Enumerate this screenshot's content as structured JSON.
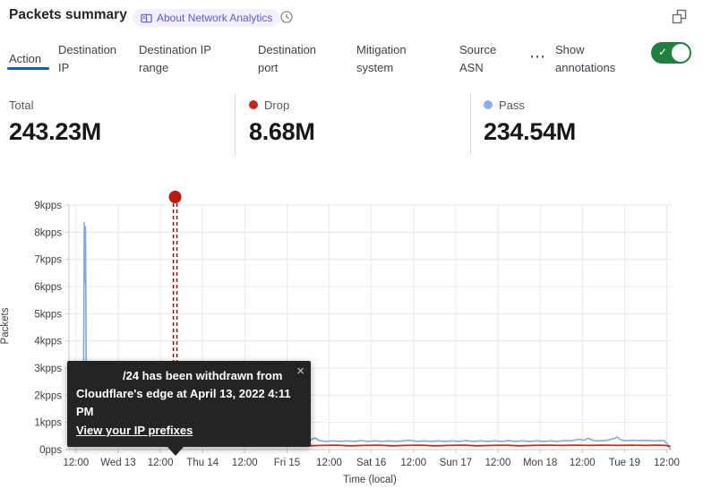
{
  "colors": {
    "accent_blue": "#0b62b8",
    "toggle_green": "#1f8040",
    "badge_bg": "#f1f0fb",
    "badge_text": "#5a5bd7",
    "drop": "#c0281f",
    "pass": "#8ab0e8"
  },
  "glyphs": {
    "close": "×",
    "more": "⋯",
    "check": "✓"
  },
  "header": {
    "title": "Packets summary",
    "about_badge": "About Network Analytics"
  },
  "tabs": {
    "items": [
      {
        "label": "Action",
        "active": true
      },
      {
        "label": "Destination IP",
        "active": false
      },
      {
        "label": "Destination IP range",
        "active": false
      },
      {
        "label": "Destination port",
        "active": false
      },
      {
        "label": "Mitigation system",
        "active": false
      },
      {
        "label": "Source ASN",
        "active": false
      }
    ],
    "annotations_label": "Show annotations",
    "annotations_toggle_on": true
  },
  "stats": [
    {
      "label": "Total",
      "value": "243.23M"
    },
    {
      "label": "Drop",
      "value": "8.68M"
    },
    {
      "label": "Pass",
      "value": "234.54M"
    }
  ],
  "tooltip": {
    "line1": "/24 has been withdrawn from",
    "line2": "Cloudflare's edge at April 13, 2022 4:11 PM",
    "link_label": "View your IP prefixes"
  },
  "chart_data": {
    "type": "line",
    "title": "Packets summary",
    "xlabel": "Time (local)",
    "ylabel": "Packets",
    "x_unit": "hours_since_start",
    "x_range_hours": [
      0,
      171.4
    ],
    "ylim_kpps": [
      0,
      9
    ],
    "grid": true,
    "grid_color": "#e9e9e9",
    "axis_color": "#c9c9c9",
    "y_ticks": [
      "0pps",
      "1kpps",
      "2kpps",
      "3kpps",
      "4kpps",
      "5kpps",
      "6kpps",
      "7kpps",
      "8kpps",
      "9kpps"
    ],
    "x_ticks": [
      {
        "hour": 2,
        "label": "12:00"
      },
      {
        "hour": 14,
        "label": "Wed 13"
      },
      {
        "hour": 26,
        "label": "12:00"
      },
      {
        "hour": 38,
        "label": "Thu 14"
      },
      {
        "hour": 50,
        "label": "12:00"
      },
      {
        "hour": 62,
        "label": "Fri 15"
      },
      {
        "hour": 74,
        "label": "12:00"
      },
      {
        "hour": 86,
        "label": "Sat 16"
      },
      {
        "hour": 98,
        "label": "12:00"
      },
      {
        "hour": 110,
        "label": "Sun 17"
      },
      {
        "hour": 122,
        "label": "12:00"
      },
      {
        "hour": 134,
        "label": "Mon 18"
      },
      {
        "hour": 146,
        "label": "12:00"
      },
      {
        "hour": 158,
        "label": "Tue 19"
      },
      {
        "hour": 170,
        "label": "12:00"
      }
    ],
    "annotation": {
      "hour": 30.2,
      "line_color": "#8c1507",
      "marker_color": "#b91b0d",
      "note": "IP prefix withdrawn April 13, 2022 4:11 PM"
    },
    "series": [
      {
        "name": "Pass",
        "color": "#7fa9e3",
        "width": 1.6,
        "points": [
          [
            0,
            0.78
          ],
          [
            0.8,
            0.6
          ],
          [
            1.6,
            0.4
          ],
          [
            2.2,
            0.32
          ],
          [
            3.2,
            0.3
          ],
          [
            3.9,
            0.42
          ],
          [
            4.15,
            2.2
          ],
          [
            4.35,
            8.35
          ],
          [
            4.55,
            6.1
          ],
          [
            4.7,
            8.2
          ],
          [
            4.9,
            3.4
          ],
          [
            5.1,
            1.1
          ],
          [
            5.6,
            0.85
          ],
          [
            6.3,
            0.72
          ],
          [
            7.2,
            0.6
          ],
          [
            8.5,
            0.48
          ],
          [
            10,
            0.4
          ],
          [
            12,
            0.34
          ],
          [
            14,
            0.32
          ],
          [
            16,
            0.32
          ],
          [
            17.8,
            0.4
          ],
          [
            19,
            0.56
          ],
          [
            19.8,
            0.68
          ],
          [
            20.7,
            0.5
          ],
          [
            21.8,
            0.38
          ],
          [
            23.5,
            0.33
          ],
          [
            25.5,
            0.32
          ],
          [
            27,
            0.4
          ],
          [
            28.3,
            0.48
          ],
          [
            29.3,
            0.52
          ],
          [
            30.2,
            0.44
          ],
          [
            31,
            0.5
          ],
          [
            31.8,
            0.42
          ],
          [
            33,
            0.33
          ],
          [
            34.5,
            0.3
          ],
          [
            36.5,
            0.32
          ],
          [
            38.5,
            0.3
          ],
          [
            40.5,
            0.32
          ],
          [
            42.5,
            0.3
          ],
          [
            44.5,
            0.32
          ],
          [
            46.5,
            0.3
          ],
          [
            48.5,
            0.32
          ],
          [
            50.5,
            0.3
          ],
          [
            52.3,
            0.36
          ],
          [
            53.6,
            0.46
          ],
          [
            54.8,
            0.35
          ],
          [
            56.5,
            0.3
          ],
          [
            58.5,
            0.32
          ],
          [
            60.5,
            0.3
          ],
          [
            62.5,
            0.33
          ],
          [
            64.5,
            0.3
          ],
          [
            66.5,
            0.32
          ],
          [
            68.5,
            0.34
          ],
          [
            69.9,
            0.43
          ],
          [
            71.2,
            0.33
          ],
          [
            73,
            0.3
          ],
          [
            75,
            0.32
          ],
          [
            77,
            0.3
          ],
          [
            79,
            0.32
          ],
          [
            81,
            0.3
          ],
          [
            83,
            0.33
          ],
          [
            85,
            0.3
          ],
          [
            87,
            0.32
          ],
          [
            89,
            0.3
          ],
          [
            91,
            0.32
          ],
          [
            93,
            0.3
          ],
          [
            95,
            0.32
          ],
          [
            97,
            0.34
          ],
          [
            99,
            0.3
          ],
          [
            101,
            0.32
          ],
          [
            103,
            0.3
          ],
          [
            105,
            0.32
          ],
          [
            107,
            0.3
          ],
          [
            109,
            0.32
          ],
          [
            111,
            0.3
          ],
          [
            113,
            0.33
          ],
          [
            115,
            0.3
          ],
          [
            117,
            0.32
          ],
          [
            119,
            0.3
          ],
          [
            121,
            0.32
          ],
          [
            123,
            0.3
          ],
          [
            125,
            0.33
          ],
          [
            127,
            0.3
          ],
          [
            129,
            0.32
          ],
          [
            131,
            0.3
          ],
          [
            133,
            0.32
          ],
          [
            135,
            0.3
          ],
          [
            137,
            0.32
          ],
          [
            139,
            0.3
          ],
          [
            141,
            0.33
          ],
          [
            143,
            0.32
          ],
          [
            145,
            0.38
          ],
          [
            146.5,
            0.34
          ],
          [
            147.7,
            0.42
          ],
          [
            149,
            0.33
          ],
          [
            151,
            0.32
          ],
          [
            153,
            0.34
          ],
          [
            155,
            0.4
          ],
          [
            155.9,
            0.46
          ],
          [
            157,
            0.35
          ],
          [
            158.5,
            0.32
          ],
          [
            160,
            0.34
          ],
          [
            162,
            0.33
          ],
          [
            164,
            0.34
          ],
          [
            166,
            0.32
          ],
          [
            168,
            0.33
          ],
          [
            169.3,
            0.32
          ],
          [
            170.2,
            0.2
          ],
          [
            170.9,
            0.04
          ]
        ]
      },
      {
        "name": "Drop",
        "color": "#a93a22",
        "width": 1.8,
        "points": [
          [
            0,
            0.14
          ],
          [
            4,
            0.15
          ],
          [
            8,
            0.14
          ],
          [
            12,
            0.15
          ],
          [
            16,
            0.14
          ],
          [
            20,
            0.15
          ],
          [
            24,
            0.14
          ],
          [
            28,
            0.15
          ],
          [
            32,
            0.14
          ],
          [
            36,
            0.15
          ],
          [
            40,
            0.16
          ],
          [
            42.4,
            0.17
          ],
          [
            43.4,
            0.43
          ],
          [
            44.3,
            0.17
          ],
          [
            46,
            0.15
          ],
          [
            50,
            0.16
          ],
          [
            54,
            0.14
          ],
          [
            57,
            0.18
          ],
          [
            60,
            0.15
          ],
          [
            64,
            0.16
          ],
          [
            68,
            0.14
          ],
          [
            72,
            0.15
          ],
          [
            76,
            0.16
          ],
          [
            80,
            0.14
          ],
          [
            84,
            0.15
          ],
          [
            88,
            0.16
          ],
          [
            92,
            0.14
          ],
          [
            96,
            0.15
          ],
          [
            100,
            0.16
          ],
          [
            104,
            0.14
          ],
          [
            108,
            0.15
          ],
          [
            112,
            0.16
          ],
          [
            116,
            0.14
          ],
          [
            120,
            0.15
          ],
          [
            124,
            0.16
          ],
          [
            128,
            0.14
          ],
          [
            132,
            0.15
          ],
          [
            136,
            0.16
          ],
          [
            140,
            0.15
          ],
          [
            144,
            0.16
          ],
          [
            148,
            0.15
          ],
          [
            152,
            0.16
          ],
          [
            156,
            0.15
          ],
          [
            160,
            0.16
          ],
          [
            164,
            0.15
          ],
          [
            167,
            0.16
          ],
          [
            169.5,
            0.15
          ],
          [
            170.9,
            0.12
          ]
        ]
      }
    ]
  }
}
